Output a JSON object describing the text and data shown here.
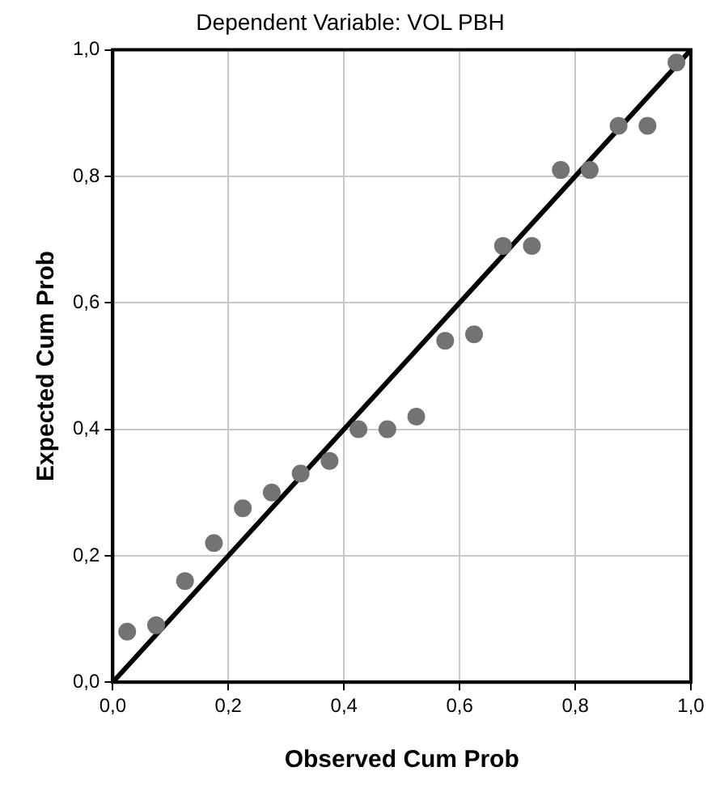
{
  "chart_data": {
    "type": "scatter",
    "title": "Dependent Variable: VOL PBH",
    "xlabel": "Observed Cum Prob",
    "ylabel": "Expected Cum Prob",
    "xlim": [
      0,
      1
    ],
    "ylim": [
      0,
      1
    ],
    "xticks": [
      {
        "value": 0,
        "label": "0,0"
      },
      {
        "value": 0.2,
        "label": "0,2"
      },
      {
        "value": 0.4,
        "label": "0,4"
      },
      {
        "value": 0.6,
        "label": "0,6"
      },
      {
        "value": 0.8,
        "label": "0,8"
      },
      {
        "value": 1,
        "label": "1,0"
      }
    ],
    "yticks": [
      {
        "value": 0,
        "label": "0,0"
      },
      {
        "value": 0.2,
        "label": "0,2"
      },
      {
        "value": 0.4,
        "label": "0,4"
      },
      {
        "value": 0.6,
        "label": "0,6"
      },
      {
        "value": 0.8,
        "label": "0,8"
      },
      {
        "value": 1,
        "label": "1,0"
      }
    ],
    "grid": true,
    "legend": false,
    "marker": "circle",
    "series": [
      {
        "type": "scatter",
        "color": "#737373",
        "x": [
          0.025,
          0.075,
          0.125,
          0.175,
          0.225,
          0.275,
          0.325,
          0.375,
          0.425,
          0.475,
          0.525,
          0.575,
          0.625,
          0.675,
          0.725,
          0.775,
          0.825,
          0.875,
          0.925,
          0.975
        ],
        "values": [
          0.08,
          0.09,
          0.16,
          0.22,
          0.275,
          0.3,
          0.33,
          0.35,
          0.4,
          0.4,
          0.42,
          0.54,
          0.55,
          0.69,
          0.69,
          0.81,
          0.81,
          0.88,
          0.88,
          0.98
        ]
      },
      {
        "type": "line",
        "color": "#000000",
        "x": [
          0,
          1
        ],
        "values": [
          0,
          1
        ],
        "marker": "none",
        "line_style": "solid"
      }
    ]
  }
}
